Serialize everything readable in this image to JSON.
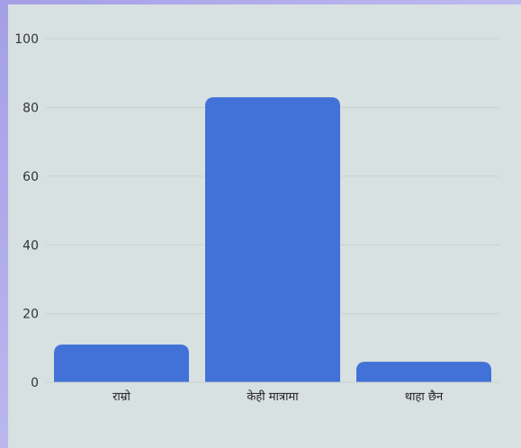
{
  "chart_data": {
    "type": "bar",
    "categories": [
      "राम्रो",
      "केही मात्रामा",
      "थाहा छैन"
    ],
    "values": [
      11,
      83,
      6
    ],
    "ylim": [
      0,
      110
    ],
    "yticks": [
      0,
      20,
      40,
      60,
      80,
      100
    ],
    "grid": true,
    "bar_color": "#4272d7",
    "background": "#d8e1e1",
    "title": "",
    "xlabel": "",
    "ylabel": ""
  }
}
